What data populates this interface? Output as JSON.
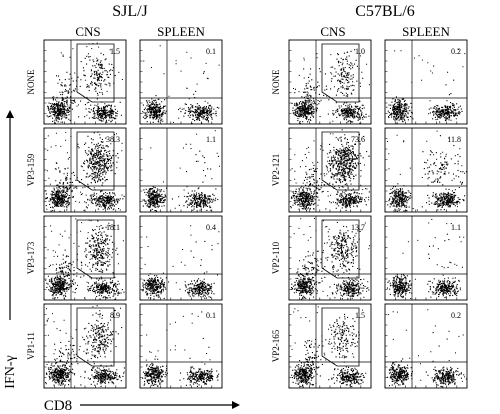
{
  "figure": {
    "left_group": {
      "strain": "SJL/J",
      "column_labels": [
        "CNS",
        "SPLEEN"
      ],
      "rows": [
        {
          "label": "NONE",
          "cns_value": "1.5",
          "spleen_value": "0.1",
          "cns_density": 0.25,
          "spleen_density": 0.02
        },
        {
          "label": "VP3-159",
          "cns_value": "38.3",
          "spleen_value": "1.1",
          "cns_density": 0.75,
          "spleen_density": 0.06
        },
        {
          "label": "VP3-173",
          "cns_value": "18.1",
          "spleen_value": "0.4",
          "cns_density": 0.5,
          "spleen_density": 0.04
        },
        {
          "label": "VP1-11",
          "cns_value": "8.9",
          "spleen_value": "0.1",
          "cns_density": 0.4,
          "spleen_density": 0.02
        }
      ]
    },
    "right_group": {
      "strain": "C57BL/6",
      "column_labels": [
        "CNS",
        "SPLEEN"
      ],
      "rows": [
        {
          "label": "NONE",
          "cns_value": "1.0",
          "spleen_value": "0.2",
          "cns_density": 0.22,
          "spleen_density": 0.02
        },
        {
          "label": "VP2-121",
          "cns_value": "73.6",
          "spleen_value": "11.8",
          "cns_density": 0.95,
          "spleen_density": 0.35
        },
        {
          "label": "VP2-110",
          "cns_value": "13.7",
          "spleen_value": "1.1",
          "cns_density": 0.45,
          "spleen_density": 0.06
        },
        {
          "label": "VP2-165",
          "cns_value": "1.5",
          "spleen_value": "0.2",
          "cns_density": 0.25,
          "spleen_density": 0.02
        }
      ]
    },
    "y_axis_label": "IFN-γ",
    "x_axis_label": "CD8"
  }
}
